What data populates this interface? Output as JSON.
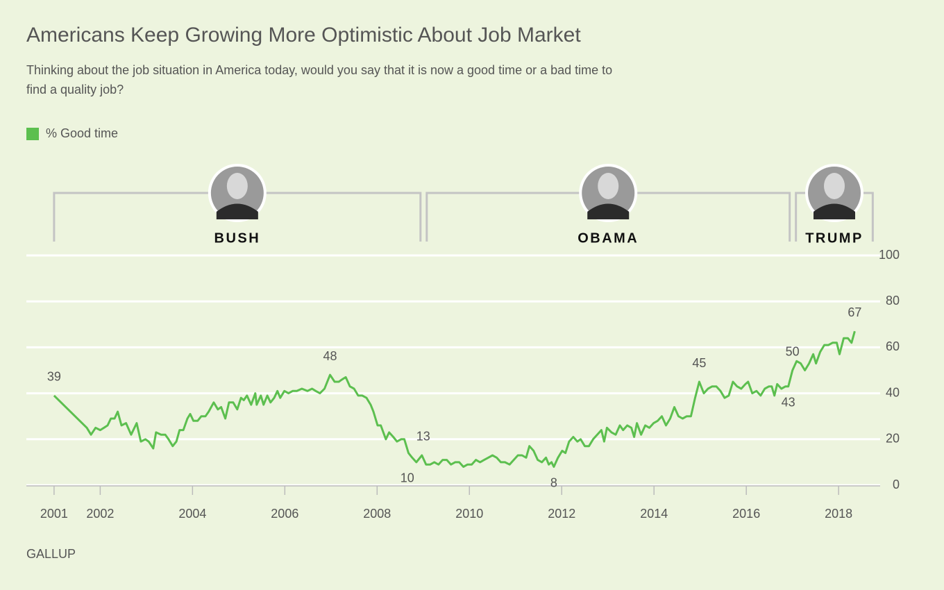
{
  "chart_data": {
    "type": "line",
    "title": "Americans Keep Growing More Optimistic About Job Market",
    "subtitle_lines": [
      "Thinking about the job situation in America today, would you say that it is now a good time or a bad time to",
      "find a quality job?"
    ],
    "source": "GALLUP",
    "presidents": [
      {
        "name": "BUSH",
        "start": 2001,
        "end": 2009
      },
      {
        "name": "OBAMA",
        "start": 2009,
        "end": 2017
      },
      {
        "name": "TRUMP",
        "start": 2017,
        "end": 2018.8
      }
    ],
    "xlim": [
      2000.4,
      2018.9
    ],
    "xticks": [
      2001,
      2002,
      2004,
      2006,
      2008,
      2010,
      2012,
      2014,
      2016,
      2018
    ],
    "ylim": [
      0,
      100
    ],
    "yticks": [
      0,
      20,
      40,
      60,
      80,
      100
    ],
    "grid": true,
    "x": [
      2001.0,
      2001.71,
      2001.8,
      2001.9,
      2002.0,
      2002.08,
      2002.16,
      2002.23,
      2002.31,
      2002.38,
      2002.46,
      2002.56,
      2002.67,
      2002.79,
      2002.88,
      2002.98,
      2003.05,
      2003.15,
      2003.21,
      2003.32,
      2003.41,
      2003.48,
      2003.57,
      2003.65,
      2003.72,
      2003.8,
      2003.89,
      2003.95,
      2004.02,
      2004.11,
      2004.19,
      2004.28,
      2004.35,
      2004.46,
      2004.55,
      2004.62,
      2004.71,
      2004.79,
      2004.88,
      2004.97,
      2005.05,
      2005.11,
      2005.18,
      2005.27,
      2005.36,
      2005.39,
      2005.48,
      2005.54,
      2005.62,
      2005.69,
      2005.77,
      2005.84,
      2005.9,
      2005.99,
      2006.08,
      2006.17,
      2006.26,
      2006.37,
      2006.49,
      2006.59,
      2006.67,
      2006.76,
      2006.86,
      2006.98,
      2007.08,
      2007.17,
      2007.24,
      2007.32,
      2007.41,
      2007.5,
      2007.59,
      2007.68,
      2007.77,
      2007.86,
      2007.92,
      2008.01,
      2008.08,
      2008.19,
      2008.26,
      2008.35,
      2008.43,
      2008.52,
      2008.59,
      2008.68,
      2008.76,
      2008.85,
      2008.97,
      2009.06,
      2009.15,
      2009.24,
      2009.33,
      2009.42,
      2009.51,
      2009.6,
      2009.69,
      2009.78,
      2009.87,
      2009.96,
      2010.05,
      2010.14,
      2010.23,
      2010.32,
      2010.41,
      2010.5,
      2010.59,
      2010.68,
      2010.77,
      2010.87,
      2010.96,
      2011.05,
      2011.14,
      2011.23,
      2011.3,
      2011.39,
      2011.48,
      2011.57,
      2011.66,
      2011.72,
      2011.78,
      2011.83,
      2011.92,
      2012.01,
      2012.08,
      2012.16,
      2012.25,
      2012.34,
      2012.41,
      2012.5,
      2012.59,
      2012.68,
      2012.77,
      2012.86,
      2012.92,
      2012.98,
      2013.08,
      2013.17,
      2013.26,
      2013.33,
      2013.42,
      2013.51,
      2013.57,
      2013.63,
      2013.72,
      2013.81,
      2013.9,
      2013.99,
      2014.08,
      2014.17,
      2014.26,
      2014.35,
      2014.44,
      2014.53,
      2014.62,
      2014.71,
      2014.8,
      2014.89,
      2014.98,
      2015.08,
      2015.17,
      2015.26,
      2015.35,
      2015.44,
      2015.53,
      2015.62,
      2015.71,
      2015.8,
      2015.89,
      2015.98,
      2016.04,
      2016.13,
      2016.22,
      2016.31,
      2016.4,
      2016.49,
      2016.55,
      2016.61,
      2016.67,
      2016.76,
      2016.85,
      2016.91,
      2017.0,
      2017.09,
      2017.18,
      2017.27,
      2017.36,
      2017.45,
      2017.51,
      2017.6,
      2017.69,
      2017.78,
      2017.87,
      2017.96,
      2018.02,
      2018.11,
      2018.2,
      2018.28,
      2018.35
    ],
    "series": [
      {
        "name": "% Good time",
        "color": "#5cbf4f",
        "values": [
          39,
          25,
          22,
          25,
          24,
          25,
          26,
          29,
          29,
          32,
          26,
          27,
          22,
          27,
          19,
          20,
          19,
          16,
          23,
          22,
          22,
          20,
          17,
          19,
          24,
          24,
          29,
          31,
          28,
          28,
          30,
          30,
          32,
          36,
          33,
          34,
          29,
          36,
          36,
          33,
          38,
          37,
          39,
          35,
          40,
          35,
          39,
          35,
          39,
          36,
          38,
          41,
          38,
          41,
          40,
          41,
          41,
          42,
          41,
          42,
          41,
          40,
          42,
          48,
          45,
          45,
          46,
          47,
          43,
          42,
          39,
          39,
          38,
          35,
          32,
          26,
          26,
          20,
          23,
          21,
          19,
          20,
          20,
          14,
          12,
          10,
          13,
          9,
          9,
          10,
          9,
          11,
          11,
          9,
          10,
          10,
          8,
          9,
          9,
          11,
          10,
          11,
          12,
          13,
          12,
          10,
          10,
          9,
          11,
          13,
          13,
          12,
          17,
          15,
          11,
          10,
          12,
          9,
          10,
          8,
          12,
          15,
          14,
          19,
          21,
          19,
          20,
          17,
          17,
          20,
          22,
          24,
          19,
          25,
          23,
          22,
          26,
          24,
          26,
          25,
          21,
          27,
          22,
          26,
          25,
          27,
          28,
          30,
          26,
          29,
          34,
          30,
          29,
          30,
          30,
          38,
          45,
          40,
          42,
          43,
          43,
          41,
          38,
          39,
          45,
          43,
          42,
          44,
          45,
          40,
          41,
          39,
          42,
          43,
          43,
          39,
          44,
          42,
          43,
          43,
          50,
          54,
          53,
          50,
          53,
          57,
          53,
          58,
          61,
          61,
          62,
          62,
          57,
          64,
          64,
          62,
          67
        ]
      }
    ],
    "annotations": [
      {
        "x": 2001.0,
        "value": 39,
        "position": "above"
      },
      {
        "x": 2006.98,
        "value": 48,
        "position": "above"
      },
      {
        "x": 2008.97,
        "value": 13,
        "position": "above"
      },
      {
        "x": 2008.85,
        "value": 10,
        "position": "below"
      },
      {
        "x": 2011.83,
        "value": 8,
        "position": "below"
      },
      {
        "x": 2014.98,
        "value": 45,
        "position": "above"
      },
      {
        "x": 2017.0,
        "value": 50,
        "position": "above"
      },
      {
        "x": 2016.91,
        "value": 43,
        "position": "below"
      },
      {
        "x": 2018.35,
        "value": 67,
        "position": "above"
      }
    ]
  }
}
